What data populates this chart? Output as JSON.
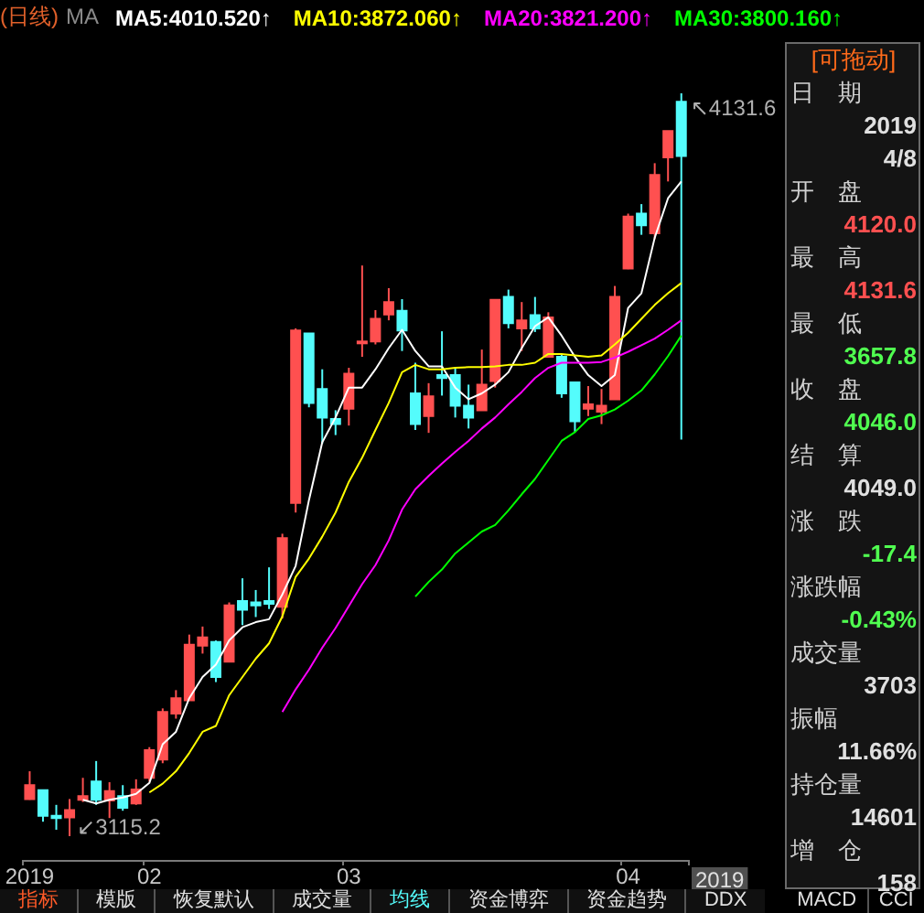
{
  "chart_data": [
    {
      "type": "candlestick",
      "title": "(日线)",
      "legend_title": "MA",
      "legend": "top",
      "tick_labels": "x",
      "marker": "none",
      "line_style": "solid",
      "colors": [
        "#ff5050",
        "#54fcfc",
        "#54fcfc",
        "#ff5050",
        "#ff5050",
        "#54fcfc",
        "#ff5050",
        "#54fcfc",
        "#ff5050",
        "#ff5050",
        "#ff5050",
        "#ff5050",
        "#ff5050",
        "#ff5050",
        "#54fcfc",
        "#ff5050",
        "#54fcfc",
        "#54fcfc",
        "#54fcfc",
        "#ff5050",
        "#ff5050",
        "#54fcfc",
        "#54fcfc",
        "#54fcfc",
        "#ff5050",
        "#ff5050",
        "#ff5050",
        "#ff5050",
        "#54fcfc",
        "#54fcfc",
        "#ff5050",
        "#54fcfc",
        "#54fcfc",
        "#54fcfc",
        "#ff5050",
        "#ff5050",
        "#54fcfc",
        "#ff5050",
        "#54fcfc",
        "#ff5050",
        "#54fcfc",
        "#54fcfc",
        "#ff5050",
        "#ff5050",
        "#ff5050",
        "#ff5050",
        "#54fcfc",
        "#ff5050",
        "#ff5050",
        "#54fcfc"
      ],
      "categories": [
        "2019",
        null,
        null,
        null,
        null,
        null,
        null,
        null,
        null,
        "02",
        null,
        null,
        null,
        null,
        null,
        null,
        null,
        null,
        null,
        null,
        null,
        null,
        null,
        null,
        "03",
        null,
        null,
        null,
        null,
        null,
        null,
        null,
        null,
        null,
        null,
        null,
        null,
        null,
        null,
        null,
        null,
        null,
        null,
        null,
        null,
        "04",
        null,
        null,
        null,
        null
      ],
      "ohlc": [
        [
          3166,
          3204,
          3165,
          3185
        ],
        [
          3178,
          3179,
          3135,
          3143
        ],
        [
          3143,
          3158,
          3124,
          3140
        ],
        [
          3141,
          3166,
          3115.2,
          3151
        ],
        [
          3165,
          3195,
          3162,
          3170
        ],
        [
          3190,
          3218,
          3158,
          3165
        ],
        [
          3164,
          3189,
          3140,
          3177
        ],
        [
          3170,
          3185,
          3150,
          3154
        ],
        [
          3160,
          3193,
          3158,
          3179
        ],
        [
          3195,
          3237,
          3190,
          3233
        ],
        [
          3220,
          3290,
          3215,
          3285
        ],
        [
          3283,
          3315,
          3276,
          3304
        ],
        [
          3301,
          3391,
          3301,
          3377
        ],
        [
          3376,
          3402,
          3365,
          3387
        ],
        [
          3381,
          3383,
          3326,
          3333
        ],
        [
          3354,
          3435,
          3354,
          3431
        ],
        [
          3437,
          3468,
          3404,
          3425
        ],
        [
          3435,
          3452,
          3415,
          3431
        ],
        [
          3437,
          3483,
          3426,
          3433
        ],
        [
          3429,
          3529,
          3413,
          3523
        ],
        [
          3571,
          3810,
          3558,
          3807
        ],
        [
          3803,
          3803,
          3702,
          3708
        ],
        [
          3727,
          3754,
          3652,
          3688
        ],
        [
          3686,
          3698,
          3664,
          3679
        ],
        [
          3700,
          3756,
          3677,
          3748
        ],
        [
          3790,
          3896,
          3771,
          3792
        ],
        [
          3792,
          3835,
          3788,
          3823
        ],
        [
          3829,
          3865,
          3821,
          3846
        ],
        [
          3834,
          3850,
          3779,
          3807
        ],
        [
          3721,
          3763,
          3671,
          3679
        ],
        [
          3690,
          3735,
          3667,
          3717
        ],
        [
          3746,
          3806,
          3718,
          3742
        ],
        [
          3746,
          3756,
          3688,
          3704
        ],
        [
          3704,
          3733,
          3673,
          3688
        ],
        [
          3698,
          3781,
          3698,
          3733
        ],
        [
          3738,
          3850,
          3729,
          3849
        ],
        [
          3853,
          3863,
          3810,
          3817
        ],
        [
          3810,
          3846,
          3779,
          3821
        ],
        [
          3828,
          3853,
          3805,
          3810
        ],
        [
          3771,
          3832,
          3771,
          3825
        ],
        [
          3771,
          3775,
          3715,
          3721
        ],
        [
          3736,
          3736,
          3668,
          3683
        ],
        [
          3700,
          3731,
          3690,
          3706
        ],
        [
          3696,
          3727,
          3679,
          3704
        ],
        [
          3713,
          3868,
          3713,
          3853
        ],
        [
          3892,
          3967,
          3891,
          3963
        ],
        [
          3967,
          3980,
          3938,
          3951
        ],
        [
          3940,
          4036,
          3932,
          4020
        ],
        [
          4044,
          4080,
          4011,
          4080
        ],
        [
          4120,
          4131.6,
          3657.8,
          4046
        ]
      ],
      "series": [
        {
          "type": "line",
          "name": "MA5:4010.520↑",
          "color": "#ffffff",
          "values": [
            null,
            null,
            null,
            null,
            3165,
            3160,
            3165,
            3168,
            3173,
            3188,
            3241,
            3258,
            3304,
            3333,
            3350,
            3383,
            3401,
            3408,
            3412,
            3446,
            3485,
            3575,
            3654,
            3688,
            3729,
            3729,
            3754,
            3783,
            3808,
            3779,
            3758,
            3758,
            3729,
            3713,
            3721,
            3733,
            3750,
            3783,
            3813,
            3825,
            3800,
            3771,
            3746,
            3731,
            3746,
            3838,
            3858,
            3934,
            3988,
            4011
          ]
        },
        {
          "type": "line",
          "name": "MA10:3872.060↑",
          "color": "#ffff00",
          "values": [
            null,
            null,
            null,
            null,
            null,
            null,
            null,
            null,
            null,
            3175,
            3187,
            3204,
            3229,
            3258,
            3266,
            3308,
            3333,
            3358,
            3379,
            3416,
            3470,
            3495,
            3525,
            3558,
            3600,
            3633,
            3671,
            3708,
            3750,
            3760,
            3754,
            3754,
            3756,
            3757,
            3757,
            3758,
            3760,
            3760,
            3763,
            3775,
            3775,
            3773,
            3771,
            3773,
            3788,
            3804,
            3823,
            3842,
            3858,
            3872
          ]
        },
        {
          "type": "line",
          "name": "MA20:3821.200↑",
          "color": "#ff00ff",
          "values": [
            null,
            null,
            null,
            null,
            null,
            null,
            null,
            null,
            null,
            null,
            null,
            null,
            null,
            null,
            null,
            null,
            null,
            null,
            null,
            3285,
            3316,
            3343,
            3373,
            3400,
            3430,
            3460,
            3486,
            3520,
            3562,
            3590,
            3608,
            3625,
            3641,
            3656,
            3673,
            3688,
            3706,
            3723,
            3742,
            3756,
            3763,
            3763,
            3763,
            3764,
            3770,
            3778,
            3787,
            3796,
            3808,
            3821
          ]
        },
        {
          "type": "line",
          "name": "MA30:3800.160↑",
          "color": "#00ff00",
          "values": [
            null,
            null,
            null,
            null,
            null,
            null,
            null,
            null,
            null,
            null,
            null,
            null,
            null,
            null,
            null,
            null,
            null,
            null,
            null,
            null,
            null,
            null,
            null,
            null,
            null,
            null,
            null,
            null,
            null,
            3443,
            3463,
            3480,
            3502,
            3517,
            3532,
            3541,
            3561,
            3583,
            3604,
            3630,
            3656,
            3668,
            3686,
            3691,
            3699,
            3711,
            3725,
            3747,
            3772,
            3800
          ]
        }
      ],
      "annotations": [
        "↖4131.6",
        "↙3115.2",
        "2019"
      ]
    },
    {
      "type": "other",
      "title": "[可拖动]",
      "annotations": [
        "日　期",
        "2019",
        "4/8",
        "开　盘",
        "4120.0",
        "最　高",
        "4131.6",
        "最　低",
        "3657.8",
        "收　盘",
        "4046.0",
        "结　算",
        "4049.0",
        "涨　跌",
        "-17.4",
        "涨跌幅",
        "-0.43%",
        "成交量",
        "3703",
        "振幅",
        "11.66%",
        "持仓量",
        "14601",
        "增　仓",
        "158"
      ],
      "colors": [
        "#d0d0d0",
        "#e0e0e0",
        "#e0e0e0",
        "#d0d0d0",
        "#ff5050",
        "#d0d0d0",
        "#ff5050",
        "#d0d0d0",
        "#50ff50",
        "#d0d0d0",
        "#50ff50",
        "#d0d0d0",
        "#e0e0e0",
        "#d0d0d0",
        "#50ff50",
        "#d0d0d0",
        "#50ff50",
        "#d0d0d0",
        "#e0e0e0",
        "#d0d0d0",
        "#e0e0e0",
        "#d0d0d0",
        "#e0e0e0",
        "#d0d0d0",
        "#e0e0e0"
      ]
    },
    {
      "type": "other",
      "annotations": [
        "指标",
        "模版",
        "恢复默认",
        "成交量",
        "均线",
        "资金博弈",
        "资金趋势",
        "DDX",
        "MACD",
        "CCI"
      ],
      "colors": [
        "#ff5a28",
        "#e0e0e0",
        "#e0e0e0",
        "#e0e0e0",
        "#54fcfc",
        "#e0e0e0",
        "#e0e0e0",
        "#e0e0e0",
        "#e0e0e0",
        "#e0e0e0"
      ]
    }
  ]
}
